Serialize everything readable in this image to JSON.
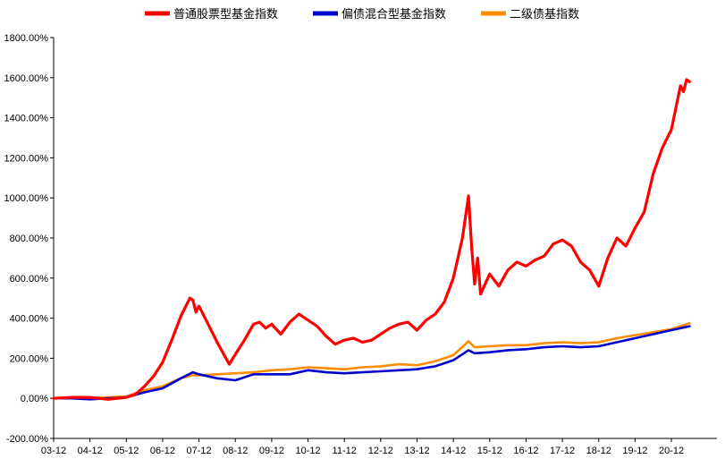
{
  "chart_data": {
    "type": "line",
    "title": "",
    "xlabel": "",
    "ylabel": "",
    "x_ticks": [
      "03-12",
      "04-12",
      "05-12",
      "06-12",
      "07-12",
      "08-12",
      "09-12",
      "10-12",
      "11-12",
      "12-12",
      "13-12",
      "14-12",
      "15-12",
      "16-12",
      "17-12",
      "18-12",
      "19-12",
      "20-12"
    ],
    "y_ticks": [
      "-200.00%",
      "0.00%",
      "200.00%",
      "400.00%",
      "600.00%",
      "800.00%",
      "1000.00%",
      "1200.00%",
      "1400.00%",
      "1600.00%",
      "1800.00%"
    ],
    "ylim": [
      -200,
      1800
    ],
    "grid": false,
    "legend_position": "top",
    "series": [
      {
        "name": "普通股票型基金指数",
        "color": "#ff0000",
        "points": [
          [
            "03-12",
            0
          ],
          [
            "04-06",
            5
          ],
          [
            "04-12",
            5
          ],
          [
            "05-06",
            -5
          ],
          [
            "05-12",
            5
          ],
          [
            "06-03",
            20
          ],
          [
            "06-06",
            60
          ],
          [
            "06-09",
            110
          ],
          [
            "06-12",
            180
          ],
          [
            "07-03",
            290
          ],
          [
            "07-06",
            410
          ],
          [
            "07-09",
            500
          ],
          [
            "07-10",
            490
          ],
          [
            "07-11",
            430
          ],
          [
            "07-12",
            460
          ],
          [
            "08-03",
            370
          ],
          [
            "08-06",
            280
          ],
          [
            "08-10",
            170
          ],
          [
            "08-12",
            220
          ],
          [
            "09-03",
            290
          ],
          [
            "09-06",
            370
          ],
          [
            "09-08",
            380
          ],
          [
            "09-10",
            350
          ],
          [
            "09-12",
            370
          ],
          [
            "10-03",
            320
          ],
          [
            "10-06",
            380
          ],
          [
            "10-09",
            420
          ],
          [
            "10-12",
            390
          ],
          [
            "11-03",
            360
          ],
          [
            "11-06",
            310
          ],
          [
            "11-09",
            270
          ],
          [
            "11-12",
            290
          ],
          [
            "12-03",
            300
          ],
          [
            "12-06",
            280
          ],
          [
            "12-09",
            290
          ],
          [
            "12-12",
            320
          ],
          [
            "13-03",
            350
          ],
          [
            "13-06",
            370
          ],
          [
            "13-09",
            380
          ],
          [
            "13-12",
            340
          ],
          [
            "14-03",
            390
          ],
          [
            "14-06",
            420
          ],
          [
            "14-09",
            480
          ],
          [
            "14-12",
            600
          ],
          [
            "15-03",
            800
          ],
          [
            "15-05",
            1010
          ],
          [
            "15-06",
            760
          ],
          [
            "15-07",
            570
          ],
          [
            "15-08",
            700
          ],
          [
            "15-09",
            520
          ],
          [
            "15-12",
            620
          ],
          [
            "16-03",
            560
          ],
          [
            "16-06",
            640
          ],
          [
            "16-09",
            680
          ],
          [
            "16-12",
            660
          ],
          [
            "17-03",
            690
          ],
          [
            "17-06",
            710
          ],
          [
            "17-09",
            770
          ],
          [
            "17-12",
            790
          ],
          [
            "18-03",
            760
          ],
          [
            "18-06",
            680
          ],
          [
            "18-09",
            640
          ],
          [
            "18-12",
            560
          ],
          [
            "19-03",
            700
          ],
          [
            "19-06",
            800
          ],
          [
            "19-09",
            760
          ],
          [
            "19-12",
            850
          ],
          [
            "20-03",
            930
          ],
          [
            "20-06",
            1120
          ],
          [
            "20-09",
            1250
          ],
          [
            "20-12",
            1340
          ],
          [
            "21-03",
            1560
          ],
          [
            "21-04",
            1530
          ],
          [
            "21-05",
            1590
          ],
          [
            "21-06",
            1580
          ]
        ]
      },
      {
        "name": "偏债混合型基金指数",
        "color": "#0000cc",
        "points": [
          [
            "03-12",
            0
          ],
          [
            "04-06",
            0
          ],
          [
            "04-12",
            -5
          ],
          [
            "05-06",
            0
          ],
          [
            "05-12",
            5
          ],
          [
            "06-06",
            30
          ],
          [
            "06-12",
            50
          ],
          [
            "07-06",
            100
          ],
          [
            "07-10",
            130
          ],
          [
            "07-12",
            120
          ],
          [
            "08-06",
            100
          ],
          [
            "08-12",
            90
          ],
          [
            "09-06",
            120
          ],
          [
            "09-12",
            120
          ],
          [
            "10-06",
            120
          ],
          [
            "10-12",
            140
          ],
          [
            "11-06",
            130
          ],
          [
            "11-12",
            125
          ],
          [
            "12-06",
            130
          ],
          [
            "12-12",
            135
          ],
          [
            "13-06",
            140
          ],
          [
            "13-12",
            145
          ],
          [
            "14-06",
            160
          ],
          [
            "14-12",
            190
          ],
          [
            "15-05",
            240
          ],
          [
            "15-07",
            225
          ],
          [
            "15-12",
            230
          ],
          [
            "16-06",
            240
          ],
          [
            "16-12",
            245
          ],
          [
            "17-06",
            255
          ],
          [
            "17-12",
            260
          ],
          [
            "18-06",
            255
          ],
          [
            "18-12",
            260
          ],
          [
            "19-06",
            280
          ],
          [
            "19-12",
            300
          ],
          [
            "20-06",
            320
          ],
          [
            "20-12",
            340
          ],
          [
            "21-06",
            360
          ]
        ]
      },
      {
        "name": "二级债基指数",
        "color": "#ff8c00",
        "points": [
          [
            "03-12",
            0
          ],
          [
            "04-06",
            5
          ],
          [
            "04-12",
            0
          ],
          [
            "05-06",
            5
          ],
          [
            "05-12",
            10
          ],
          [
            "06-06",
            40
          ],
          [
            "06-12",
            60
          ],
          [
            "07-06",
            100
          ],
          [
            "07-10",
            115
          ],
          [
            "07-12",
            115
          ],
          [
            "08-06",
            120
          ],
          [
            "08-12",
            125
          ],
          [
            "09-06",
            130
          ],
          [
            "09-12",
            140
          ],
          [
            "10-06",
            145
          ],
          [
            "10-12",
            155
          ],
          [
            "11-06",
            150
          ],
          [
            "11-12",
            145
          ],
          [
            "12-06",
            155
          ],
          [
            "12-12",
            160
          ],
          [
            "13-06",
            170
          ],
          [
            "13-12",
            165
          ],
          [
            "14-06",
            185
          ],
          [
            "14-12",
            215
          ],
          [
            "15-05",
            285
          ],
          [
            "15-07",
            255
          ],
          [
            "15-12",
            260
          ],
          [
            "16-06",
            265
          ],
          [
            "16-12",
            265
          ],
          [
            "17-06",
            275
          ],
          [
            "17-12",
            280
          ],
          [
            "18-06",
            275
          ],
          [
            "18-12",
            280
          ],
          [
            "19-06",
            300
          ],
          [
            "19-12",
            315
          ],
          [
            "20-06",
            330
          ],
          [
            "20-12",
            345
          ],
          [
            "21-06",
            375
          ]
        ]
      }
    ]
  }
}
